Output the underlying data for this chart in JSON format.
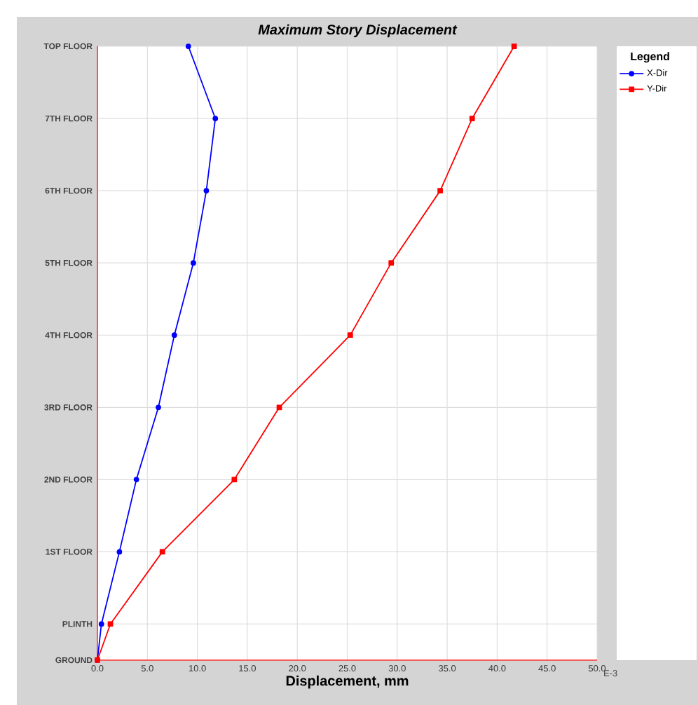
{
  "chart_data": {
    "type": "line",
    "title": "Maximum Story Displacement",
    "xlabel": "Displacement, mm",
    "legend_title": "Legend",
    "legend": "right",
    "grid": true,
    "line_style": "solid",
    "xlim": [
      0,
      50
    ],
    "xticks": [
      {
        "value": 0,
        "label": "0.0"
      },
      {
        "value": 5,
        "label": "5.0"
      },
      {
        "value": 10,
        "label": "10.0"
      },
      {
        "value": 15,
        "label": "15.0"
      },
      {
        "value": 20,
        "label": "20.0"
      },
      {
        "value": 25,
        "label": "25.0"
      },
      {
        "value": 30,
        "label": "30.0"
      },
      {
        "value": 35,
        "label": "35.0"
      },
      {
        "value": 40,
        "label": "40.0"
      },
      {
        "value": 45,
        "label": "45.0"
      },
      {
        "value": 50,
        "label": "50.0"
      }
    ],
    "ylim": [
      0,
      8.5
    ],
    "yticks": [
      {
        "value": 0,
        "label": "GROUND"
      },
      {
        "value": 0.5,
        "label": "PLINTH"
      },
      {
        "value": 1.5,
        "label": "1ST FLOOR"
      },
      {
        "value": 2.5,
        "label": "2ND FLOOR"
      },
      {
        "value": 3.5,
        "label": "3RD FLOOR"
      },
      {
        "value": 4.5,
        "label": "4TH FLOOR"
      },
      {
        "value": 5.5,
        "label": "5TH FLOOR"
      },
      {
        "value": 6.5,
        "label": "6TH FLOOR"
      },
      {
        "value": 7.5,
        "label": "7TH FLOOR"
      },
      {
        "value": 8.5,
        "label": "TOP FLOOR"
      }
    ],
    "annotations": [
      "E-3"
    ],
    "series": [
      {
        "name": "X-Dir",
        "color": "#0000ff",
        "marker": "circle",
        "x": [
          0,
          0.4,
          2.2,
          3.9,
          6.1,
          7.7,
          9.6,
          10.9,
          11.8,
          9.1
        ],
        "values": [
          0,
          0.5,
          1.5,
          2.5,
          3.5,
          4.5,
          5.5,
          6.5,
          7.5,
          8.5
        ]
      },
      {
        "name": "Y-Dir",
        "color": "#ff0000",
        "marker": "square",
        "x": [
          0,
          1.3,
          6.5,
          13.7,
          18.2,
          25.3,
          29.4,
          34.3,
          37.5,
          41.7
        ],
        "values": [
          0,
          0.5,
          1.5,
          2.5,
          3.5,
          4.5,
          5.5,
          6.5,
          7.5,
          8.5
        ]
      }
    ]
  }
}
